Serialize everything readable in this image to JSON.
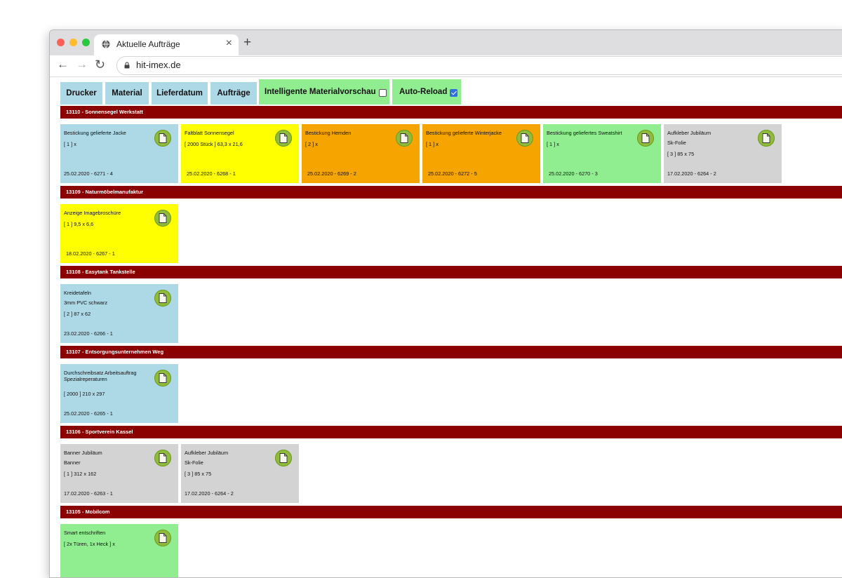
{
  "browser": {
    "tab_title": "Aktuelle Aufträge",
    "url": "hit-imex.de",
    "new_tab_symbol": "+",
    "close_symbol": "×",
    "back_symbol": "←",
    "forward_symbol": "→",
    "reload_symbol": "↻",
    "traffic_light_colors": [
      "#ff5f57",
      "#febc2e",
      "#28c840"
    ]
  },
  "nav": {
    "buttons": [
      "Drucker",
      "Material",
      "Lieferdatum",
      "Aufträge"
    ],
    "material_preview_label": "Intelligente Materialvorschau",
    "material_preview_checked": false,
    "auto_reload_label": "Auto-Reload",
    "auto_reload_checked": true
  },
  "colors": {
    "header": "#8b0000",
    "blue": "#add8e6",
    "yellow": "#ffff00",
    "orange": "#f5a400",
    "green": "#90ee90",
    "grey": "#d3d3d3",
    "pdf_icon": "#8fbc3a"
  },
  "groups": [
    {
      "header": "13110 - Sonnensegel Werkstatt",
      "cards": [
        {
          "color": "blue",
          "line1": "Bestickung gelieferte Jacke",
          "line2": "[ 1 ] x",
          "line3": "",
          "footer": "25.02.2020 - 6271 - 4",
          "icon": "pdf-icon"
        },
        {
          "color": "yellow",
          "line1": "Faltblatt Sonnensegel",
          "line2": "[ 2000 Stück ] 63,3 x 21,6",
          "line3": "",
          "footer": "25.02.2020 - 6268 - 1",
          "icon": "pdf-icon"
        },
        {
          "color": "orange",
          "line1": "Bestickung Hemden",
          "line2": "[ 2 ] x",
          "line3": "",
          "footer": "25.02.2020 - 6269 - 2",
          "icon": "pdf-icon"
        },
        {
          "color": "orange",
          "line1": "Bestickung gelieferte Winterjacke",
          "line2": "[ 1 ] x",
          "line3": "",
          "footer": "25.02.2020 - 6272 - 5",
          "icon": "pdf-icon"
        },
        {
          "color": "green",
          "line1": "Bestickung geliefertes Sweatshirt",
          "line2": "[ 1 ] x",
          "line3": "",
          "footer": "25.02.2020 - 6270 - 3",
          "icon": "pdf-icon"
        },
        {
          "color": "grey",
          "line1": "Aufkleber Jubiläum",
          "line2": "Sk-Folie",
          "line3": "[ 3 ] 85 x 75",
          "footer": "17.02.2020 - 6264 - 2",
          "icon": "pdf-icon",
          "dense": true
        }
      ]
    },
    {
      "header": "13109 - Naturmöbelmanufaktur",
      "cards": [
        {
          "color": "yellow",
          "line1": "Anzeige Imagebroschüre",
          "line2": "[ 1 ] 9,5 x 6,6",
          "line3": "",
          "footer": "18.02.2020 - 6267 - 1",
          "icon": "pdf-icon"
        }
      ]
    },
    {
      "header": "13108 - Easytank Tankstelle",
      "cards": [
        {
          "color": "blue",
          "line1": "Kreidetafeln",
          "line2": "3mm PVC schwarz",
          "line3": "[ 2 ] 87 x 62",
          "footer": "23.02.2020 - 6266 - 1",
          "icon": "pdf-icon",
          "dense": true
        }
      ]
    },
    {
      "header": "13107 - Entsorgungsunternehmen Weg",
      "cards": [
        {
          "color": "blue",
          "line1": "Durchschreibsatz Arbeitsauftrag",
          "line1b": "Spezialreperaturen",
          "line2": "[ 2000 ] 210 x 297",
          "line3": "",
          "footer": "25.02.2020 - 6265 - 1",
          "icon": "pdf-icon",
          "twoline": true
        }
      ]
    },
    {
      "header": "13106 - Sportverein Kassel",
      "cards": [
        {
          "color": "grey",
          "line1": "Banner Jubiläum",
          "line2": "Banner",
          "line3": "[ 1 ] 312 x 162",
          "footer": "17.02.2020 - 6263 - 1",
          "icon": "pdf-icon",
          "dense": true
        },
        {
          "color": "grey",
          "line1": "Aufkleber Jubiläum",
          "line2": "Sk-Folie",
          "line3": "[ 3 ] 85 x 75",
          "footer": "17.02.2020 - 6264 - 2",
          "icon": "pdf-icon",
          "dense": true
        }
      ]
    },
    {
      "header": "13105 - Mobilcom",
      "cards": [
        {
          "color": "green",
          "line1": "Smart entschriften",
          "line2": "[ 2x Türen, 1x Heck ] x",
          "line3": "",
          "footer": "",
          "icon": "pdf-icon"
        }
      ]
    }
  ]
}
